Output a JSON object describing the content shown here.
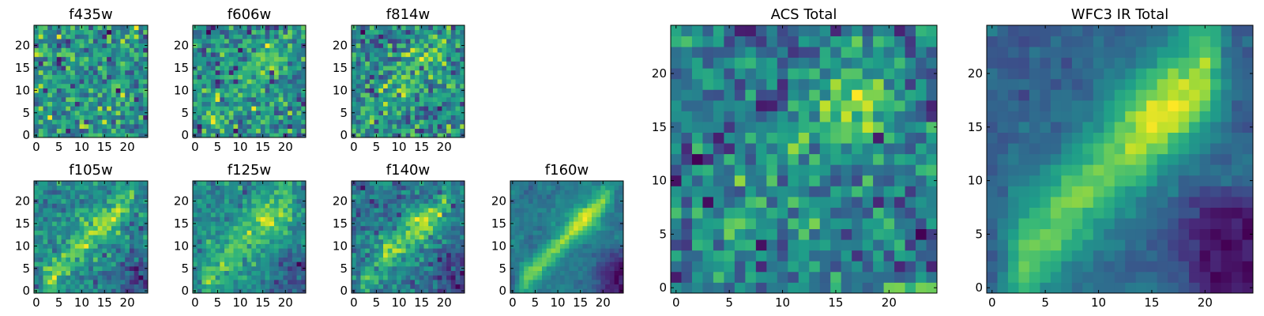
{
  "figure": {
    "description_colormap": "viridis",
    "colormap_stops": [
      "#440154",
      "#3b528b",
      "#21918c",
      "#5ec962",
      "#fde725"
    ]
  },
  "chart_data": [
    {
      "type": "heatmap",
      "title": "f435w",
      "grid_size": 25,
      "xlim": [
        -0.5,
        24.5
      ],
      "ylim": [
        -0.5,
        24.5
      ],
      "xticks": [
        0,
        5,
        10,
        15,
        20
      ],
      "yticks": [
        0,
        5,
        10,
        15,
        20
      ],
      "xtick_labels": [
        "0",
        "5",
        "10",
        "15",
        "20"
      ],
      "ytick_labels": [
        "0",
        "5",
        "10",
        "15",
        "20"
      ],
      "values_summary": "noise-dominated, mean ~0.55 (normalized), no clear structure"
    },
    {
      "type": "heatmap",
      "title": "f606w",
      "grid_size": 25,
      "xlim": [
        -0.5,
        24.5
      ],
      "ylim": [
        -0.5,
        24.5
      ],
      "xticks": [
        0,
        5,
        10,
        15,
        20
      ],
      "yticks": [
        0,
        5,
        10,
        15,
        20
      ],
      "xtick_labels": [
        "0",
        "5",
        "10",
        "15",
        "20"
      ],
      "ytick_labels": [
        "0",
        "5",
        "10",
        "15",
        "20"
      ],
      "values_summary": "noisy, faint diagonal feature from (5,5) to (17,18)"
    },
    {
      "type": "heatmap",
      "title": "f814w",
      "grid_size": 25,
      "xlim": [
        -0.5,
        24.5
      ],
      "ylim": [
        -0.5,
        24.5
      ],
      "xticks": [
        0,
        5,
        10,
        15,
        20
      ],
      "yticks": [
        0,
        5,
        10,
        15,
        20
      ],
      "xtick_labels": [
        "0",
        "5",
        "10",
        "15",
        "20"
      ],
      "ytick_labels": [
        "0",
        "5",
        "10",
        "15",
        "20"
      ],
      "values_summary": "noisy, diagonal feature peaking near (16,17)"
    },
    {
      "type": "heatmap",
      "title": "f105w",
      "grid_size": 25,
      "xlim": [
        -0.5,
        24.5
      ],
      "ylim": [
        -0.5,
        24.5
      ],
      "xticks": [
        0,
        5,
        10,
        15,
        20
      ],
      "yticks": [
        0,
        5,
        10,
        15,
        20
      ],
      "xtick_labels": [
        "0",
        "5",
        "10",
        "15",
        "20"
      ],
      "ytick_labels": [
        "0",
        "5",
        "10",
        "15",
        "20"
      ],
      "values_summary": "diagonal arc from (2,2) to (18,18), brightest near (14,15); dark pixels lower right"
    },
    {
      "type": "heatmap",
      "title": "f125w",
      "grid_size": 25,
      "xlim": [
        -0.5,
        24.5
      ],
      "ylim": [
        -0.5,
        24.5
      ],
      "xticks": [
        0,
        5,
        10,
        15,
        20
      ],
      "yticks": [
        0,
        5,
        10,
        15,
        20
      ],
      "xtick_labels": [
        "0",
        "5",
        "10",
        "15",
        "20"
      ],
      "ytick_labels": [
        "0",
        "5",
        "10",
        "15",
        "20"
      ],
      "values_summary": "broad bright diagonal band, peak near (16,17)"
    },
    {
      "type": "heatmap",
      "title": "f140w",
      "grid_size": 25,
      "xlim": [
        -0.5,
        24.5
      ],
      "ylim": [
        -0.5,
        24.5
      ],
      "xticks": [
        0,
        5,
        10,
        15,
        20
      ],
      "yticks": [
        0,
        5,
        10,
        15,
        20
      ],
      "xtick_labels": [
        "0",
        "5",
        "10",
        "15",
        "20"
      ],
      "ytick_labels": [
        "0",
        "5",
        "10",
        "15",
        "20"
      ],
      "values_summary": "diagonal band with bright knots near (15,15) and (9,9)"
    },
    {
      "type": "heatmap",
      "title": "f160w",
      "grid_size": 25,
      "xlim": [
        -0.5,
        24.5
      ],
      "ylim": [
        -0.5,
        24.5
      ],
      "xticks": [
        0,
        5,
        10,
        15,
        20
      ],
      "yticks": [
        0,
        5,
        10,
        15,
        20
      ],
      "xtick_labels": [
        "0",
        "5",
        "10",
        "15",
        "20"
      ],
      "ytick_labels": [
        "0",
        "5",
        "10",
        "15",
        "20"
      ],
      "values_summary": "smooth thin diagonal line from (0,0) to (22,22), peak near (15,16)"
    },
    {
      "type": "heatmap",
      "title": "ACS Total",
      "grid_size": 25,
      "xlim": [
        -0.5,
        24.5
      ],
      "ylim": [
        -0.5,
        24.5
      ],
      "xticks": [
        0,
        10,
        20
      ],
      "xticks_minor": [
        5,
        15
      ],
      "yticks": [
        0,
        5,
        10,
        15,
        20
      ],
      "xtick_labels": [
        "0",
        "5",
        "10",
        "15",
        "20"
      ],
      "ytick_labels": [
        "0",
        "5",
        "10",
        "15",
        "20"
      ],
      "values_summary": "noisy mosaic, bright knot around (16,17) and diagonal brightening"
    },
    {
      "type": "heatmap",
      "title": "WFC3 IR Total",
      "grid_size": 25,
      "xlim": [
        -0.5,
        24.5
      ],
      "ylim": [
        -0.5,
        24.5
      ],
      "xticks": [
        0,
        10,
        20
      ],
      "xticks_minor": [
        5,
        15
      ],
      "yticks": [
        0,
        5,
        10,
        15,
        20
      ],
      "xtick_labels": [
        "0",
        "5",
        "10",
        "15",
        "20"
      ],
      "ytick_labels": [
        "0",
        "5",
        "10",
        "15",
        "20"
      ],
      "values_summary": "smooth bright diagonal band from (3,3) to (18,18), peak near (16,17); dark region lower right (x 18-24, y 2-9)"
    }
  ]
}
